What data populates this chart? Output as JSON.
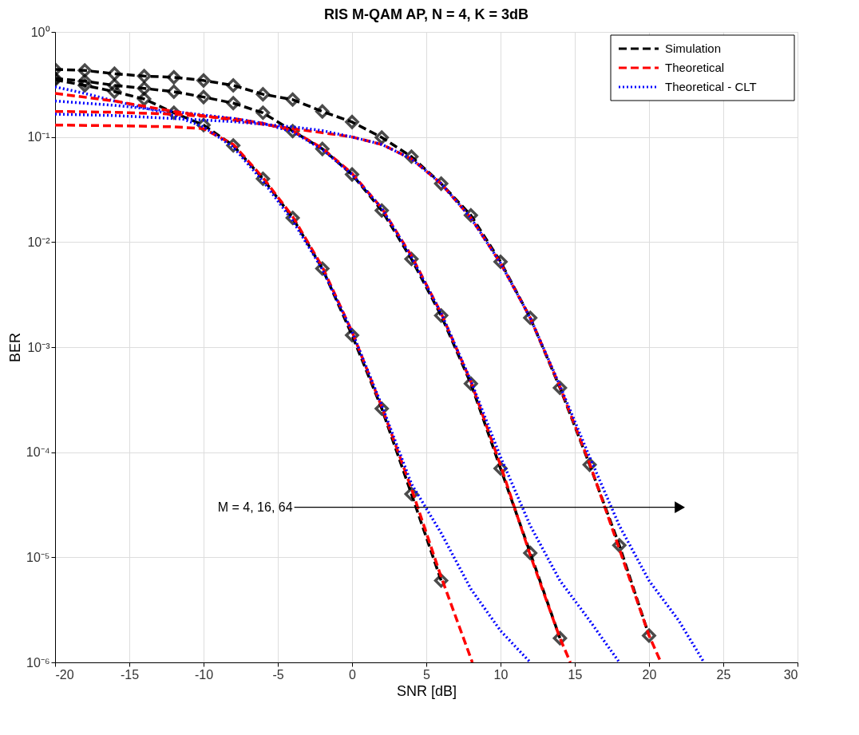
{
  "chart_data": {
    "type": "line",
    "title": "RIS M-QAM AP, N = 4, K = 3dB",
    "xlabel": "SNR [dB]",
    "ylabel": "BER",
    "xlim": [
      -20,
      30
    ],
    "xticks": [
      -20,
      -15,
      -10,
      -5,
      0,
      5,
      10,
      15,
      20,
      25,
      30
    ],
    "ylim": [
      1e-06,
      1
    ],
    "yticks": [
      {
        "value": 1e-06,
        "label": "10⁻⁶"
      },
      {
        "value": 1e-05,
        "label": "10⁻⁵"
      },
      {
        "value": 0.0001,
        "label": "10⁻⁴"
      },
      {
        "value": 0.001,
        "label": "10⁻³"
      },
      {
        "value": 0.01,
        "label": "10⁻²"
      },
      {
        "value": 0.1,
        "label": "10⁻¹"
      },
      {
        "value": 1,
        "label": "10⁰"
      }
    ],
    "log": "y",
    "grid": true,
    "legend": "top right",
    "annotations": [
      "M = 4, 16, 64"
    ],
    "series": [
      {
        "name": "Simulation",
        "color": "#000000",
        "line_style": "dashed",
        "marker": "diamond",
        "x": [
          -20,
          -18,
          -16,
          -14,
          -12,
          -10,
          -8,
          -6,
          -4,
          -2,
          0,
          2,
          4,
          6
        ],
        "values": [
          0.35,
          0.31,
          0.27,
          0.23,
          0.17,
          0.13,
          0.083,
          0.04,
          0.017,
          0.0056,
          0.0013,
          0.00026,
          4e-05,
          6e-06
        ]
      },
      {
        "name": "Theoretical",
        "color": "#ff0000",
        "line_style": "dashed",
        "marker": "none",
        "x": [
          -20,
          -16,
          -12,
          -10,
          -8,
          -6,
          -4,
          -2,
          0,
          2,
          4,
          6,
          8.1
        ],
        "values": [
          0.13,
          0.128,
          0.125,
          0.12,
          0.085,
          0.041,
          0.0175,
          0.0058,
          0.0014,
          0.00027,
          4.5e-05,
          6.5e-06,
          1e-06
        ]
      },
      {
        "name": "Theoretical - CLT",
        "color": "#0000ff",
        "line_style": "dotted",
        "marker": "none",
        "x": [
          -20,
          -18,
          -16,
          -14,
          -12,
          -10,
          -8,
          -6,
          -4,
          -2,
          0,
          2,
          4,
          6,
          8,
          10,
          12
        ],
        "values": [
          0.3,
          0.26,
          0.22,
          0.19,
          0.16,
          0.125,
          0.08,
          0.038,
          0.016,
          0.0055,
          0.0014,
          0.00028,
          5e-05,
          1.7e-05,
          5e-06,
          2e-06,
          1e-06
        ]
      },
      {
        "color": "#000000",
        "line_style": "dashed",
        "marker": "diamond",
        "x": [
          -20,
          -18,
          -16,
          -14,
          -12,
          -10,
          -8,
          -6,
          -4,
          -2,
          0,
          2,
          4,
          6,
          8,
          10,
          12,
          14
        ],
        "values": [
          0.36,
          0.34,
          0.31,
          0.29,
          0.27,
          0.24,
          0.21,
          0.17,
          0.114,
          0.077,
          0.044,
          0.02,
          0.0069,
          0.002,
          0.00045,
          7e-05,
          1.1e-05,
          1.7e-06
        ]
      },
      {
        "color": "#ff0000",
        "line_style": "dashed",
        "marker": "none",
        "x": [
          -20,
          -16,
          -12,
          -8,
          -6,
          -4,
          -2,
          0,
          2,
          4,
          6,
          8,
          10,
          12,
          14,
          14.7
        ],
        "values": [
          0.175,
          0.172,
          0.165,
          0.15,
          0.135,
          0.115,
          0.078,
          0.045,
          0.021,
          0.0074,
          0.0021,
          0.00047,
          7.5e-05,
          1.05e-05,
          1.7e-06,
          1e-06
        ]
      },
      {
        "color": "#0000ff",
        "line_style": "dotted",
        "marker": "none",
        "x": [
          -20,
          -16,
          -12,
          -8,
          -6,
          -4,
          -2,
          0,
          2,
          4,
          6,
          8,
          10,
          12,
          14,
          16,
          18
        ],
        "values": [
          0.22,
          0.2,
          0.175,
          0.15,
          0.135,
          0.112,
          0.076,
          0.044,
          0.021,
          0.0072,
          0.0021,
          0.00048,
          9e-05,
          2e-05,
          6e-06,
          2.5e-06,
          1e-06
        ]
      },
      {
        "color": "#000000",
        "line_style": "dashed",
        "marker": "diamond",
        "x": [
          -20,
          -18,
          -16,
          -14,
          -12,
          -10,
          -8,
          -6,
          -4,
          -2,
          0,
          2,
          4,
          6,
          8,
          10,
          12,
          14,
          16,
          18,
          20
        ],
        "values": [
          0.44,
          0.43,
          0.4,
          0.38,
          0.37,
          0.345,
          0.31,
          0.255,
          0.227,
          0.175,
          0.139,
          0.099,
          0.065,
          0.036,
          0.018,
          0.0065,
          0.0019,
          0.00041,
          7.6e-05,
          1.3e-05,
          1.8e-06
        ]
      },
      {
        "color": "#ff0000",
        "line_style": "dashed",
        "marker": "none",
        "x": [
          -20,
          -16,
          -12,
          -8,
          -4,
          -2,
          0,
          2,
          4,
          6,
          8,
          10,
          12,
          14,
          16,
          18,
          20,
          20.8
        ],
        "values": [
          0.26,
          0.22,
          0.175,
          0.145,
          0.12,
          0.11,
          0.1,
          0.085,
          0.062,
          0.036,
          0.017,
          0.0063,
          0.0019,
          0.00042,
          7.8e-05,
          1.2e-05,
          1.8e-06,
          1e-06
        ]
      },
      {
        "color": "#0000ff",
        "line_style": "dotted",
        "marker": "none",
        "x": [
          -20,
          -16,
          -12,
          -8,
          -4,
          -2,
          0,
          2,
          4,
          6,
          8,
          10,
          12,
          14,
          16,
          18,
          20,
          22,
          23.7
        ],
        "values": [
          0.165,
          0.16,
          0.15,
          0.14,
          0.125,
          0.115,
          0.1,
          0.085,
          0.062,
          0.036,
          0.017,
          0.0063,
          0.0019,
          0.00043,
          9e-05,
          2e-05,
          6e-06,
          2.5e-06,
          1e-06
        ]
      }
    ]
  }
}
